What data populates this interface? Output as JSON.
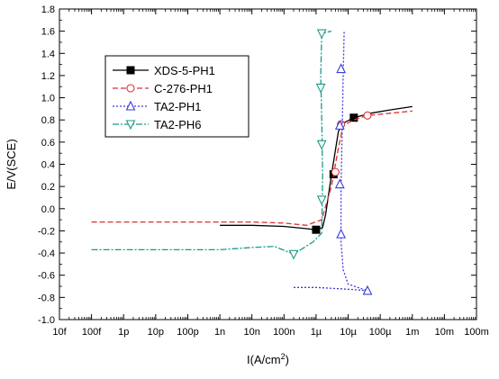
{
  "chart_data": {
    "type": "line",
    "title": "",
    "xlabel": "I(A/cm",
    "xlabel_sup": "2",
    "xlabel_end": ")",
    "ylabel": "E/V(SCE)",
    "x_scale": "log",
    "xlim": [
      1e-14,
      0.1
    ],
    "ylim": [
      -1.0,
      1.8
    ],
    "grid": false,
    "legend_position": "upper-left",
    "x_ticks": [
      1e-14,
      1e-13,
      1e-12,
      1e-11,
      1e-10,
      1e-09,
      1e-08,
      1e-07,
      1e-06,
      1e-05,
      0.0001,
      0.001,
      0.01,
      0.1
    ],
    "x_tick_labels": [
      "10f",
      "100f",
      "1p",
      "10p",
      "100p",
      "1n",
      "10n",
      "100n",
      "1µ",
      "10µ",
      "100µ",
      "1m",
      "10m",
      "100m"
    ],
    "y_ticks": [
      -1.0,
      -0.8,
      -0.6,
      -0.4,
      -0.2,
      0.0,
      0.2,
      0.4,
      0.6,
      0.8,
      1.0,
      1.2,
      1.4,
      1.6,
      1.8
    ],
    "y_tick_labels": [
      "-1.0",
      "-0.8",
      "-0.6",
      "-0.4",
      "-0.2",
      "0.0",
      "0.2",
      "0.4",
      "0.6",
      "0.8",
      "1.0",
      "1.2",
      "1.4",
      "1.6",
      "1.8"
    ],
    "series": [
      {
        "name": "XDS-5-PH1",
        "color": "#000000",
        "line_style": "solid",
        "marker": "square-filled",
        "points": [
          [
            1e-09,
            -0.15
          ],
          [
            1e-08,
            -0.15
          ],
          [
            1e-07,
            -0.16
          ],
          [
            5e-07,
            -0.18
          ],
          [
            1e-06,
            -0.19
          ],
          [
            1.6e-06,
            -0.17
          ],
          [
            2e-06,
            -0.05
          ],
          [
            3e-06,
            0.3
          ],
          [
            5e-06,
            0.7
          ],
          [
            8e-06,
            0.78
          ],
          [
            1.5e-05,
            0.82
          ],
          [
            5e-05,
            0.86
          ],
          [
            0.0002,
            0.89
          ],
          [
            0.001,
            0.92
          ]
        ],
        "marker_points": [
          [
            1e-06,
            -0.19
          ],
          [
            3.5e-06,
            0.31
          ],
          [
            1.5e-05,
            0.82
          ]
        ]
      },
      {
        "name": "C-276-PH1",
        "color": "#e03030",
        "line_style": "dashed",
        "marker": "circle-open",
        "points": [
          [
            1e-13,
            -0.12
          ],
          [
            1e-11,
            -0.12
          ],
          [
            1e-09,
            -0.12
          ],
          [
            1e-08,
            -0.12
          ],
          [
            1e-07,
            -0.13
          ],
          [
            5e-07,
            -0.15
          ],
          [
            1.5e-06,
            -0.1
          ],
          [
            3e-06,
            0.2
          ],
          [
            5e-06,
            0.55
          ],
          [
            7e-06,
            0.75
          ],
          [
            1.5e-05,
            0.8
          ],
          [
            4e-05,
            0.84
          ],
          [
            0.0002,
            0.86
          ],
          [
            0.001,
            0.88
          ]
        ],
        "marker_points": [
          [
            4e-06,
            0.33
          ],
          [
            6e-06,
            0.76
          ],
          [
            4e-05,
            0.84
          ]
        ]
      },
      {
        "name": "TA2-PH1",
        "color": "#3a3adc",
        "line_style": "dotted",
        "marker": "triangle-up-open",
        "points": [
          [
            2e-07,
            -0.71
          ],
          [
            1e-06,
            -0.71
          ],
          [
            4e-06,
            -0.72
          ],
          [
            1.5e-05,
            -0.73
          ],
          [
            4e-05,
            -0.74
          ],
          [
            1e-05,
            -0.68
          ],
          [
            7e-06,
            -0.55
          ],
          [
            6e-06,
            -0.3
          ],
          [
            6e-06,
            0.2
          ],
          [
            6.5e-06,
            0.7
          ],
          [
            7e-06,
            1.2
          ],
          [
            7.5e-06,
            1.6
          ]
        ],
        "marker_points": [
          [
            4e-05,
            -0.74
          ],
          [
            6e-06,
            -0.23
          ],
          [
            5.5e-06,
            0.22
          ],
          [
            5.5e-06,
            0.75
          ],
          [
            6e-06,
            1.26
          ]
        ]
      },
      {
        "name": "TA2-PH6",
        "color": "#1a9a8a",
        "line_style": "dashdot",
        "marker": "triangle-down-open",
        "points": [
          [
            1e-13,
            -0.37
          ],
          [
            1e-11,
            -0.37
          ],
          [
            1e-09,
            -0.37
          ],
          [
            1e-08,
            -0.35
          ],
          [
            5e-08,
            -0.34
          ],
          [
            2e-07,
            -0.41
          ],
          [
            8e-07,
            -0.3
          ],
          [
            1.5e-06,
            -0.22
          ],
          [
            1.6e-06,
            0.3
          ],
          [
            1.5e-06,
            0.8
          ],
          [
            1.4e-06,
            1.2
          ],
          [
            1.5e-06,
            1.58
          ],
          [
            3e-06,
            1.6
          ]
        ],
        "marker_points": [
          [
            2e-07,
            -0.41
          ],
          [
            1.5e-06,
            0.08
          ],
          [
            1.5e-06,
            0.58
          ],
          [
            1.4e-06,
            1.09
          ],
          [
            1.5e-06,
            1.58
          ]
        ]
      }
    ]
  }
}
